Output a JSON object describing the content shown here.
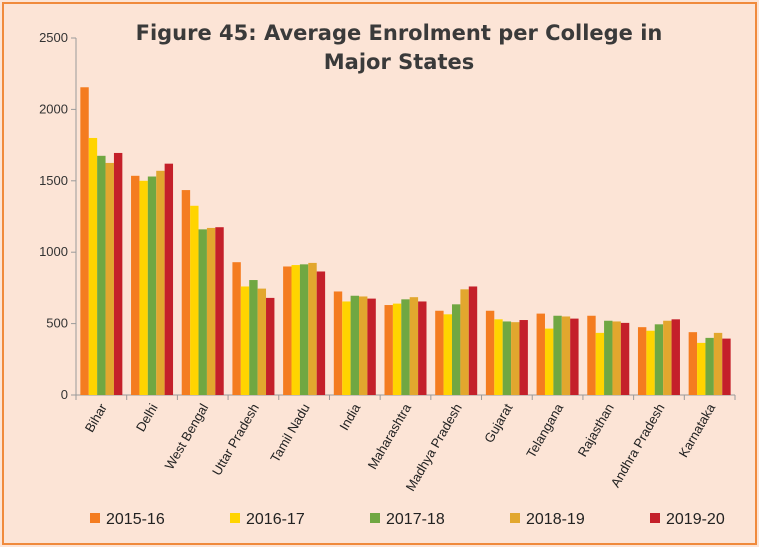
{
  "chart_data": {
    "type": "bar",
    "title": "Figure 45: Average Enrolment per College in Major States",
    "title_lines": [
      "Figure 45: Average Enrolment per College in",
      "Major States"
    ],
    "xlabel": "",
    "ylabel": "",
    "ylim": [
      0,
      2500
    ],
    "yticks": [
      0,
      500,
      1000,
      1500,
      2000,
      2500
    ],
    "grid": false,
    "legend_position": "bottom",
    "categories": [
      "Bihar",
      "Delhi",
      "West Bengal",
      "Uttar Pradesh",
      "Tamil Nadu",
      "India",
      "Maharashtra",
      "Madhya Pradesh",
      "Gujarat",
      "Telangana",
      "Rajasthan",
      "Andhra Pradesh",
      "Karnataka"
    ],
    "series": [
      {
        "name": "2015-16",
        "color": "#f47c20",
        "values": [
          2155,
          1535,
          1435,
          930,
          900,
          725,
          630,
          590,
          590,
          570,
          555,
          475,
          440
        ]
      },
      {
        "name": "2016-17",
        "color": "#ffd400",
        "values": [
          1800,
          1500,
          1325,
          760,
          910,
          655,
          640,
          565,
          530,
          465,
          435,
          450,
          365
        ]
      },
      {
        "name": "2017-18",
        "color": "#70a742",
        "values": [
          1675,
          1530,
          1160,
          805,
          915,
          695,
          670,
          635,
          515,
          555,
          520,
          495,
          400
        ]
      },
      {
        "name": "2018-19",
        "color": "#e2a72e",
        "values": [
          1625,
          1570,
          1170,
          745,
          925,
          690,
          685,
          740,
          510,
          550,
          515,
          520,
          435
        ]
      },
      {
        "name": "2019-20",
        "color": "#c4202a",
        "values": [
          1695,
          1620,
          1175,
          680,
          865,
          675,
          655,
          760,
          525,
          535,
          505,
          530,
          395
        ]
      }
    ]
  }
}
